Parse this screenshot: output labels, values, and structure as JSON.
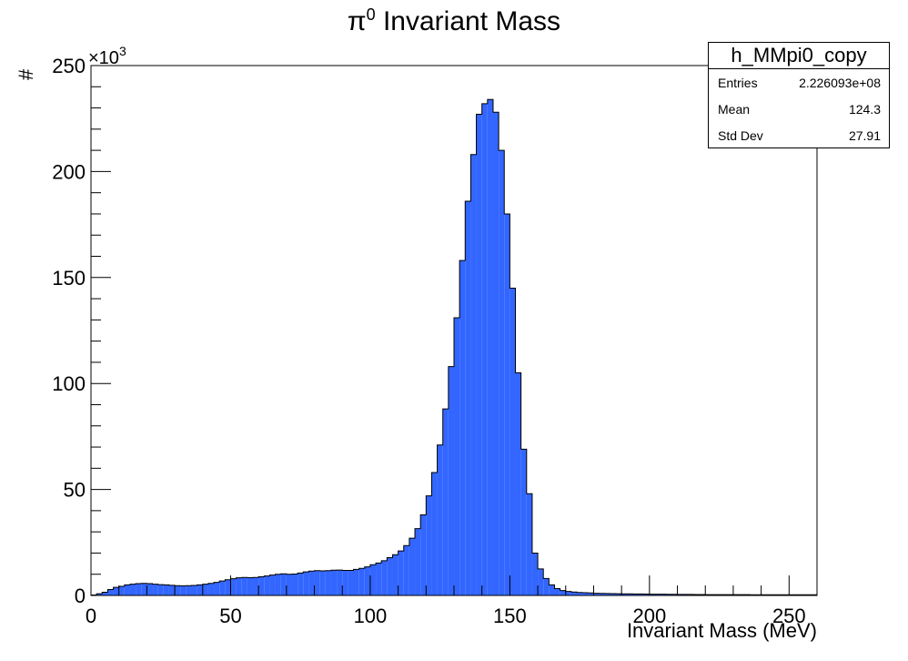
{
  "chart_data": {
    "type": "bar",
    "title_symbol": "π",
    "title_sup": "0",
    "title_rest": " Invariant Mass",
    "xlabel": "Invariant Mass (MeV)",
    "ylabel": "#",
    "y_multiplier": "×10",
    "y_multiplier_exp": "3",
    "xlim": [
      0,
      260
    ],
    "ylim": [
      0,
      250
    ],
    "x_ticks": [
      "0",
      "50",
      "100",
      "150",
      "200",
      "250"
    ],
    "y_ticks": [
      "0",
      "50",
      "100",
      "150",
      "200",
      "250"
    ],
    "bin_width": 2,
    "values": [
      0.2,
      0.8,
      1.5,
      2.8,
      3.8,
      4.3,
      5.0,
      5.3,
      5.6,
      5.7,
      5.6,
      5.3,
      5.1,
      5.0,
      4.8,
      4.6,
      4.5,
      4.6,
      4.7,
      5.0,
      5.3,
      5.7,
      6.2,
      6.8,
      7.4,
      7.9,
      8.3,
      8.5,
      8.4,
      8.5,
      8.8,
      9.2,
      9.6,
      10.0,
      10.2,
      10.0,
      10.1,
      10.6,
      11.1,
      11.5,
      11.7,
      11.6,
      11.7,
      11.9,
      12.0,
      11.8,
      11.8,
      12.3,
      12.8,
      13.5,
      14.5,
      15.3,
      16.4,
      17.8,
      19.2,
      21.0,
      23.5,
      27.0,
      31.5,
      38.0,
      47.0,
      58.0,
      71.0,
      88.0,
      108.0,
      131.0,
      158.0,
      186.0,
      208.0,
      227.0,
      232.0,
      234.0,
      228.0,
      210.0,
      180.0,
      145.0,
      105.0,
      69.0,
      48.0,
      20.0,
      12.5,
      8.0,
      5.0,
      3.2,
      2.3,
      1.9,
      1.6,
      1.4,
      1.3,
      1.2,
      1.0,
      0.95,
      0.9,
      0.85,
      0.8,
      0.75,
      0.75,
      0.7,
      0.7,
      0.65,
      0.6,
      0.6,
      0.6,
      0.55,
      0.55,
      0.5,
      0.5,
      0.5,
      0.45,
      0.45,
      0.4,
      0.4,
      0.4,
      0.4,
      0.35,
      0.35,
      0.35,
      0.35,
      0.3,
      0.3,
      0.3,
      0.3,
      0.3,
      0.3,
      0.3,
      0.3,
      0.3,
      0.3,
      0.3,
      0.3
    ],
    "fill_color": "#3366ff",
    "grid": false,
    "legend_position": "top-right"
  },
  "stats": {
    "name": "h_MMpi0_copy",
    "rows": [
      {
        "key": "Entries",
        "value": "2.226093e+08"
      },
      {
        "key": "Mean",
        "value": "124.3"
      },
      {
        "key": "Std Dev",
        "value": "27.91"
      }
    ]
  }
}
